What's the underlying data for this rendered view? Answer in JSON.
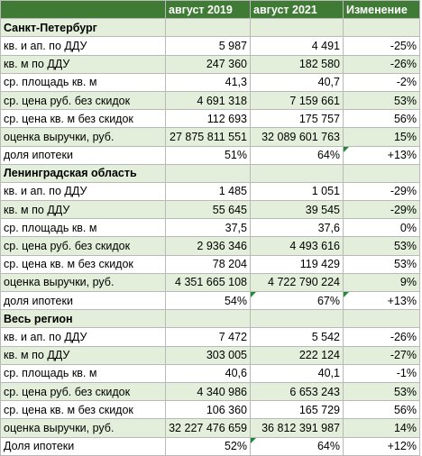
{
  "header": {
    "col1": "август 2019",
    "col2": "август 2021",
    "col3": "Изменение"
  },
  "sections": [
    {
      "title": "Санкт-Петербург",
      "rows": [
        {
          "label": "кв. и ап. по ДДУ",
          "v2019": "5 987",
          "v2021": "4 491",
          "change": "-25%"
        },
        {
          "label": "кв. м по ДДУ",
          "v2019": "247 360",
          "v2021": "182 580",
          "change": "-26%"
        },
        {
          "label": "ср. площадь кв. м",
          "v2019": "41,3",
          "v2021": "40,7",
          "change": "-2%"
        },
        {
          "label": "ср. цена руб. без скидок",
          "v2019": "4 691 318",
          "v2021": "7 159 661",
          "change": "53%"
        },
        {
          "label": "ср. цена кв. м без скидок",
          "v2019": "112 693",
          "v2021": "175 757",
          "change": "56%"
        },
        {
          "label": "оценка выручки, руб.",
          "v2019": "27 875 811 551",
          "v2021": "32 089 601 763",
          "change": "15%"
        },
        {
          "label": "доля ипотеки",
          "v2019": "51%",
          "v2021": "64%",
          "change": "+13%"
        }
      ]
    },
    {
      "title": "Ленинградская область",
      "rows": [
        {
          "label": "кв. и ап. по ДДУ",
          "v2019": "1 485",
          "v2021": "1 051",
          "change": "-29%"
        },
        {
          "label": "кв. м по ДДУ",
          "v2019": "55 645",
          "v2021": "39 545",
          "change": "-29%"
        },
        {
          "label": "ср. площадь кв. м",
          "v2019": "37,5",
          "v2021": "37,6",
          "change": "0%"
        },
        {
          "label": "ср. цена руб. без скидок",
          "v2019": "2 936 346",
          "v2021": "4 493 616",
          "change": "53%"
        },
        {
          "label": "ср. цена кв. м без скидок",
          "v2019": "78 204",
          "v2021": "119 429",
          "change": "53%"
        },
        {
          "label": "оценка выручки, руб.",
          "v2019": "4 351 665 108",
          "v2021": "4 722 790 224",
          "change": "9%"
        },
        {
          "label": "доля ипотеки",
          "v2019": "54%",
          "v2021": "67%",
          "change": "+13%"
        }
      ]
    },
    {
      "title": "Весь регион",
      "rows": [
        {
          "label": "кв. и ап. по ДДУ",
          "v2019": "7 472",
          "v2021": "5 542",
          "change": "-26%"
        },
        {
          "label": "кв. м по ДДУ",
          "v2019": "303 005",
          "v2021": "222 124",
          "change": "-27%"
        },
        {
          "label": "ср. площадь кв. м",
          "v2019": "40,6",
          "v2021": "40,1",
          "change": "-1%"
        },
        {
          "label": "ср. цена руб. без скидок",
          "v2019": "4 340 986",
          "v2021": "6 653 243",
          "change": "53%"
        },
        {
          "label": "ср. цена кв. м без скидок",
          "v2019": "106 360",
          "v2021": "165 729",
          "change": "56%"
        },
        {
          "label": "оценка выручки, руб.",
          "v2019": "32 227 476 659",
          "v2021": "36 812 391 987",
          "change": "14%"
        },
        {
          "label": "Доля ипотеки",
          "v2019": "52%",
          "v2021": "64%",
          "change": "+12%"
        }
      ]
    }
  ]
}
